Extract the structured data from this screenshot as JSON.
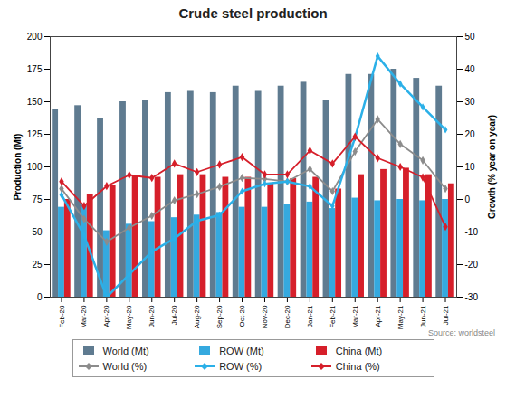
{
  "chart_data": {
    "type": "bar",
    "title": "Crude steel production",
    "y_label": "Production (Mt)",
    "y2_label": "Growth (% year on year)",
    "source": "Source: worldsteel",
    "categories": [
      "Feb-20",
      "Mar-20",
      "Apr-20",
      "May-20",
      "Jun-20",
      "Jul-20",
      "Aug-20",
      "Sep-20",
      "Oct-20",
      "Nov-20",
      "Dec-20",
      "Jan-21",
      "Feb-21",
      "Mar-21",
      "Apr-21",
      "May-21",
      "Jun-21",
      "Jul-21"
    ],
    "ylim": [
      0,
      200
    ],
    "yticks": [
      0,
      25,
      50,
      75,
      100,
      125,
      150,
      175,
      200
    ],
    "y2lim": [
      -30,
      50
    ],
    "y2ticks": [
      -30,
      -20,
      -10,
      0,
      10,
      20,
      30,
      40,
      50
    ],
    "grid": false,
    "legend": "bottom",
    "series": [
      {
        "name": "World (Mt)",
        "type": "bar",
        "color": "#5f7b90",
        "values": [
          144,
          147,
          137,
          150,
          151,
          157,
          158,
          157,
          162,
          158,
          162,
          165,
          151,
          171,
          171,
          175,
          168,
          162
        ]
      },
      {
        "name": "ROW (Mt)",
        "type": "bar",
        "color": "#35a9df",
        "values": [
          69,
          71,
          51,
          56,
          58,
          61,
          63,
          65,
          69,
          69,
          71,
          73,
          68,
          76,
          74,
          75,
          74,
          75
        ]
      },
      {
        "name": "China (Mt)",
        "type": "bar",
        "color": "#d61f2a",
        "values": [
          75,
          79,
          86,
          93,
          92,
          94,
          94,
          92,
          92,
          87,
          91,
          92,
          83,
          94,
          98,
          99,
          94,
          87
        ]
      },
      {
        "name": "World (%)",
        "type": "line",
        "axis": "y2",
        "color": "#8c8c8c",
        "marker": "diamond",
        "values": [
          3.3,
          -6,
          -13,
          -8.7,
          -5,
          -0.3,
          1.6,
          3.9,
          6.6,
          6.3,
          5.5,
          9.3,
          2.5,
          14.7,
          24.6,
          17,
          12,
          3.3
        ]
      },
      {
        "name": "ROW (%)",
        "type": "line",
        "axis": "y2",
        "color": "#2bb0e8",
        "marker": "diamond",
        "values": [
          1.4,
          -11,
          -30,
          -23,
          -16,
          -12,
          -6.6,
          -4.8,
          2.5,
          4.8,
          5.5,
          4,
          -2,
          19,
          44,
          35.5,
          28.4,
          21.4
        ]
      },
      {
        "name": "China (%)",
        "type": "line",
        "axis": "y2",
        "color": "#d61f2a",
        "marker": "diamond",
        "values": [
          5.5,
          -2,
          4.1,
          7.5,
          6.6,
          11,
          8.4,
          10.7,
          13,
          7.7,
          7.7,
          15,
          11,
          19.3,
          12.7,
          10,
          6.8,
          -8.4
        ]
      }
    ]
  }
}
